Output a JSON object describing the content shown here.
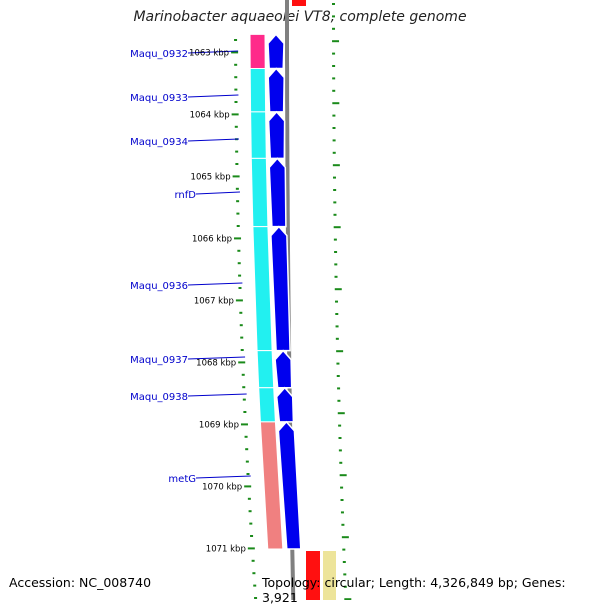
{
  "title": "Marinobacter aquaeolei VT8, complete genome",
  "footer": {
    "accession": "Accession: NC_008740",
    "topology": "Topology: circular; Length: 4,326,849 bp; Genes: 3,921"
  },
  "colors": {
    "axis_tick": "#1a8a1a",
    "ring_gray": "#808080",
    "gene_magenta": "#ff2a8a",
    "gene_cyan": "#22f0f0",
    "gene_salmon": "#f08080",
    "cds_blue": "#0000ee",
    "label_blue": "#0000cc",
    "feature_red": "#ff1010",
    "feature_yellow": "#ede49a"
  },
  "scale_labels": [
    {
      "text": "1063 kbp",
      "kbp": 1063
    },
    {
      "text": "1064 kbp",
      "kbp": 1064
    },
    {
      "text": "1065 kbp",
      "kbp": 1065
    },
    {
      "text": "1066 kbp",
      "kbp": 1066
    },
    {
      "text": "1067 kbp",
      "kbp": 1067
    },
    {
      "text": "1068 kbp",
      "kbp": 1068
    },
    {
      "text": "1069 kbp",
      "kbp": 1069
    },
    {
      "text": "1070 kbp",
      "kbp": 1070
    },
    {
      "text": "1071 kbp",
      "kbp": 1071
    }
  ],
  "genes": [
    {
      "name": "Maqu_0932",
      "start_kbp": 1062.7,
      "end_kbp": 1063.25,
      "color": "magenta"
    },
    {
      "name": "Maqu_0933",
      "start_kbp": 1063.25,
      "end_kbp": 1063.95,
      "color": "cyan"
    },
    {
      "name": "Maqu_0934",
      "start_kbp": 1063.95,
      "end_kbp": 1064.7,
      "color": "cyan"
    },
    {
      "name": "rnfD",
      "start_kbp": 1064.7,
      "end_kbp": 1065.8,
      "color": "cyan"
    },
    {
      "name": "Maqu_0936",
      "start_kbp": 1065.8,
      "end_kbp": 1067.8,
      "color": "cyan"
    },
    {
      "name": "Maqu_0937",
      "start_kbp": 1067.8,
      "end_kbp": 1068.4,
      "color": "cyan"
    },
    {
      "name": "Maqu_0938",
      "start_kbp": 1068.4,
      "end_kbp": 1068.95,
      "color": "cyan"
    },
    {
      "name": "metG",
      "start_kbp": 1068.95,
      "end_kbp": 1071.0,
      "color": "salmon"
    }
  ],
  "gene_labels": [
    {
      "text": "Maqu_0932",
      "gene": "Maqu_0932"
    },
    {
      "text": "Maqu_0933",
      "gene": "Maqu_0933"
    },
    {
      "text": "Maqu_0934",
      "gene": "Maqu_0934"
    },
    {
      "text": "rnfD",
      "gene": "rnfD"
    },
    {
      "text": "Maqu_0936",
      "gene": "Maqu_0936"
    },
    {
      "text": "Maqu_0937",
      "gene": "Maqu_0937"
    },
    {
      "text": "Maqu_0938",
      "gene": "Maqu_0938"
    },
    {
      "text": "metG",
      "gene": "metG"
    }
  ]
}
